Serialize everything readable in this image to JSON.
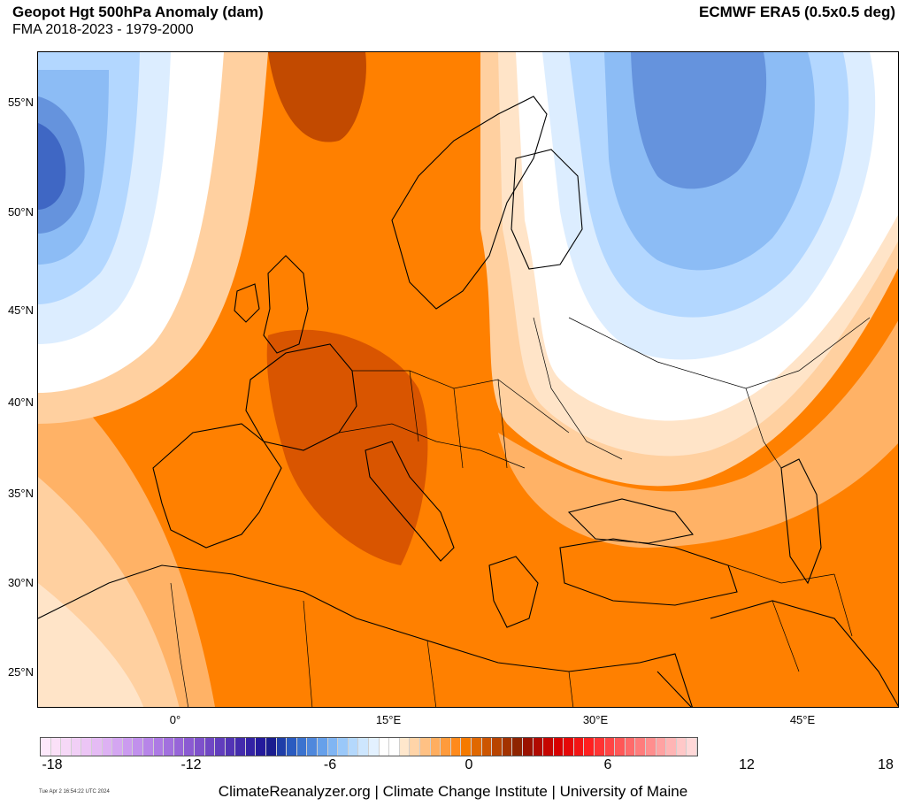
{
  "header": {
    "title": "Geopot Hgt 500hPa Anomaly (dam)",
    "subtitle": "FMA 2018-2023 - 1979-2000",
    "source": "ECMWF ERA5 (0.5x0.5 deg)"
  },
  "map": {
    "lat_labels": [
      "55°N",
      "50°N",
      "45°N",
      "40°N",
      "35°N",
      "30°N",
      "25°N"
    ],
    "lon_labels": [
      "0°",
      "15°E",
      "30°E",
      "45°E"
    ],
    "colors": {
      "deep_orange": "#d95500",
      "orange": "#ff8000",
      "mid_orange": "#ff9a33",
      "light_orange": "#ffb266",
      "pale_orange": "#ffd0a0",
      "peach": "#ffe4c8",
      "white": "#ffffff",
      "pale_blue": "#dcedff",
      "light_blue": "#b3d7ff",
      "mid_blue": "#8cbcf5",
      "blue": "#6593dd",
      "deep_blue": "#3f67c4"
    }
  },
  "colorbar": {
    "tick_labels": [
      "-18",
      "-12",
      "-6",
      "0",
      "6",
      "12",
      "18"
    ],
    "colors": [
      "#fde8fb",
      "#fbe0f8",
      "#f6d8f7",
      "#f1cff6",
      "#ecc5f5",
      "#e5bbf4",
      "#ddb1f3",
      "#d4a6f1",
      "#cb9bef",
      "#c190ec",
      "#b785e8",
      "#ad7ae4",
      "#a270de",
      "#9765d8",
      "#8b5bd2",
      "#7e51cb",
      "#7047c4",
      "#613dbd",
      "#5234b5",
      "#432bad",
      "#3322a5",
      "#241a9c",
      "#1a1d8f",
      "#1f3ea8",
      "#2a5bc0",
      "#3b73cf",
      "#4f88dc",
      "#66a0ea",
      "#80b5f3",
      "#9ac8f9",
      "#b4d8fc",
      "#cde6fe",
      "#e3f1ff",
      "#ffffff",
      "#ffffff",
      "#ffe7cc",
      "#ffd4a8",
      "#ffc184",
      "#ffae60",
      "#ff9b3c",
      "#ff8a1c",
      "#f57a00",
      "#e06800",
      "#cc5500",
      "#b84400",
      "#a33300",
      "#8e2400",
      "#9a1200",
      "#b00a00",
      "#c50500",
      "#d70000",
      "#e50808",
      "#f21414",
      "#ff2020",
      "#ff3333",
      "#ff4545",
      "#ff5757",
      "#ff6a6a",
      "#ff7c7c",
      "#ff8e8e",
      "#ffa2a2",
      "#ffb5b5",
      "#ffc8c8",
      "#ffd8d8"
    ]
  },
  "timestamp": "Tue Apr  2 16:54:22 UTC 2024",
  "footer": "ClimateReanalyzer.org | Climate Change Institute | University of Maine"
}
